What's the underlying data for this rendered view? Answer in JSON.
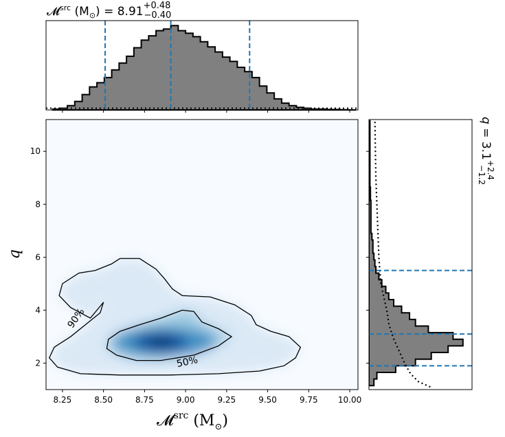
{
  "chart_data": [
    {
      "type": "histogram",
      "panel": "top-marginal",
      "title_symbol": "𝓜",
      "title_sup": "src",
      "title_unit": " (M",
      "title_sub_unit": "⊙",
      "title_value": ") = 8.91",
      "title_upper": "+0.48",
      "title_lower": "−0.40",
      "xlim": [
        8.15,
        10.05
      ],
      "bins_x": [
        8.19,
        8.235,
        8.28,
        8.325,
        8.37,
        8.415,
        8.46,
        8.505,
        8.55,
        8.595,
        8.64,
        8.685,
        8.73,
        8.775,
        8.82,
        8.865,
        8.91,
        8.955,
        9.0,
        9.045,
        9.09,
        9.135,
        9.18,
        9.225,
        9.27,
        9.315,
        9.36,
        9.405,
        9.45,
        9.495,
        9.54,
        9.585,
        9.63,
        9.675,
        9.72,
        9.765,
        9.81,
        9.855,
        9.9,
        9.945,
        9.99,
        10.035
      ],
      "density": [
        0.01,
        0.02,
        0.05,
        0.1,
        0.18,
        0.27,
        0.32,
        0.38,
        0.47,
        0.55,
        0.63,
        0.73,
        0.82,
        0.87,
        0.93,
        0.95,
        0.99,
        0.93,
        0.9,
        0.86,
        0.8,
        0.74,
        0.68,
        0.62,
        0.57,
        0.5,
        0.45,
        0.38,
        0.28,
        0.2,
        0.13,
        0.08,
        0.05,
        0.03,
        0.02,
        0.01,
        0.01,
        0.005,
        0.005,
        0.002,
        0.001
      ],
      "prior_level": 0.02,
      "quantiles": [
        8.51,
        8.91,
        9.39
      ]
    },
    {
      "type": "heatmap",
      "panel": "joint",
      "xlabel_symbol": "𝓜",
      "xlabel_sup": "src",
      "xlabel_unit": " (M",
      "xlabel_sub": "⊙",
      "xlabel_close": ")",
      "ylabel": "q",
      "xlim": [
        8.15,
        10.05
      ],
      "ylim": [
        1.0,
        11.2
      ],
      "xticks": [
        "8.25",
        "8.50",
        "8.75",
        "9.00",
        "9.25",
        "9.50",
        "9.75",
        "10.00"
      ],
      "xtick_values": [
        8.25,
        8.5,
        8.75,
        9.0,
        9.25,
        9.5,
        9.75,
        10.0
      ],
      "yticks": [
        "2",
        "4",
        "6",
        "8",
        "10"
      ],
      "ytick_values": [
        2,
        4,
        6,
        8,
        10
      ],
      "colormap": "Blues",
      "peak": [
        8.85,
        2.8
      ],
      "contours": [
        {
          "level": "90%",
          "points": [
            [
              8.5,
              4.3
            ],
            [
              8.48,
              3.9
            ],
            [
              8.4,
              3.5
            ],
            [
              8.3,
              3.0
            ],
            [
              8.2,
              2.6
            ],
            [
              8.17,
              2.2
            ],
            [
              8.22,
              1.85
            ],
            [
              8.36,
              1.6
            ],
            [
              8.6,
              1.55
            ],
            [
              8.9,
              1.55
            ],
            [
              9.2,
              1.6
            ],
            [
              9.45,
              1.7
            ],
            [
              9.6,
              1.9
            ],
            [
              9.67,
              2.2
            ],
            [
              9.7,
              2.6
            ],
            [
              9.63,
              3.0
            ],
            [
              9.52,
              3.2
            ],
            [
              9.43,
              3.45
            ],
            [
              9.4,
              3.8
            ],
            [
              9.3,
              4.2
            ],
            [
              9.15,
              4.5
            ],
            [
              8.98,
              4.55
            ],
            [
              8.92,
              4.8
            ],
            [
              8.87,
              5.2
            ],
            [
              8.82,
              5.55
            ],
            [
              8.72,
              5.95
            ],
            [
              8.6,
              5.95
            ],
            [
              8.55,
              5.75
            ],
            [
              8.45,
              5.5
            ],
            [
              8.35,
              5.4
            ],
            [
              8.25,
              5.0
            ],
            [
              8.23,
              4.55
            ],
            [
              8.3,
              4.1
            ],
            [
              8.42,
              3.7
            ]
          ]
        },
        {
          "level": "50%",
          "points": [
            [
              8.53,
              2.9
            ],
            [
              8.6,
              3.2
            ],
            [
              8.72,
              3.45
            ],
            [
              8.85,
              3.7
            ],
            [
              8.98,
              4.0
            ],
            [
              9.05,
              3.95
            ],
            [
              9.1,
              3.55
            ],
            [
              9.2,
              3.3
            ],
            [
              9.28,
              3.0
            ],
            [
              9.2,
              2.65
            ],
            [
              9.05,
              2.3
            ],
            [
              8.85,
              2.1
            ],
            [
              8.7,
              2.1
            ],
            [
              8.58,
              2.3
            ],
            [
              8.52,
              2.55
            ]
          ]
        }
      ]
    },
    {
      "type": "histogram",
      "panel": "right-marginal",
      "title_symbol": "q",
      "title_value": " = 3.1",
      "title_upper": "+2.4",
      "title_lower": "−1.2",
      "ylim": [
        1.0,
        11.2
      ],
      "bins_y": [
        1.15,
        1.4,
        1.65,
        1.9,
        2.15,
        2.4,
        2.65,
        2.9,
        3.15,
        3.4,
        3.65,
        3.9,
        4.15,
        4.4,
        4.65,
        4.9,
        5.15,
        5.4,
        5.65,
        5.9,
        6.15,
        6.4,
        6.65,
        6.9,
        7.15,
        7.4,
        7.65,
        7.9,
        8.15,
        8.4,
        8.65,
        8.9,
        9.15,
        9.4,
        9.65,
        9.9,
        10.15,
        10.4,
        10.65,
        10.9,
        11.15
      ],
      "density": [
        0.05,
        0.08,
        0.27,
        0.47,
        0.63,
        0.8,
        0.95,
        0.85,
        0.6,
        0.47,
        0.41,
        0.33,
        0.25,
        0.2,
        0.17,
        0.13,
        0.1,
        0.07,
        0.06,
        0.05,
        0.04,
        0.04,
        0.03,
        0.02,
        0.02,
        0.02,
        0.02,
        0.02,
        0.015,
        0.015,
        0.01,
        0.01,
        0.01,
        0.01,
        0.01,
        0.01,
        0.01,
        0.01,
        0.01,
        0.01
      ],
      "prior": [
        [
          1.1,
          0.62
        ],
        [
          1.3,
          0.5
        ],
        [
          1.6,
          0.42
        ],
        [
          2.0,
          0.36
        ],
        [
          2.5,
          0.3
        ],
        [
          3.0,
          0.24
        ],
        [
          3.5,
          0.2
        ],
        [
          4.0,
          0.18
        ],
        [
          4.5,
          0.15
        ],
        [
          5.0,
          0.12
        ],
        [
          6.0,
          0.1
        ],
        [
          7.0,
          0.09
        ],
        [
          8.0,
          0.08
        ],
        [
          9.0,
          0.07
        ],
        [
          10.0,
          0.065
        ],
        [
          11.2,
          0.06
        ]
      ],
      "quantiles": [
        1.9,
        3.1,
        5.5
      ]
    }
  ]
}
